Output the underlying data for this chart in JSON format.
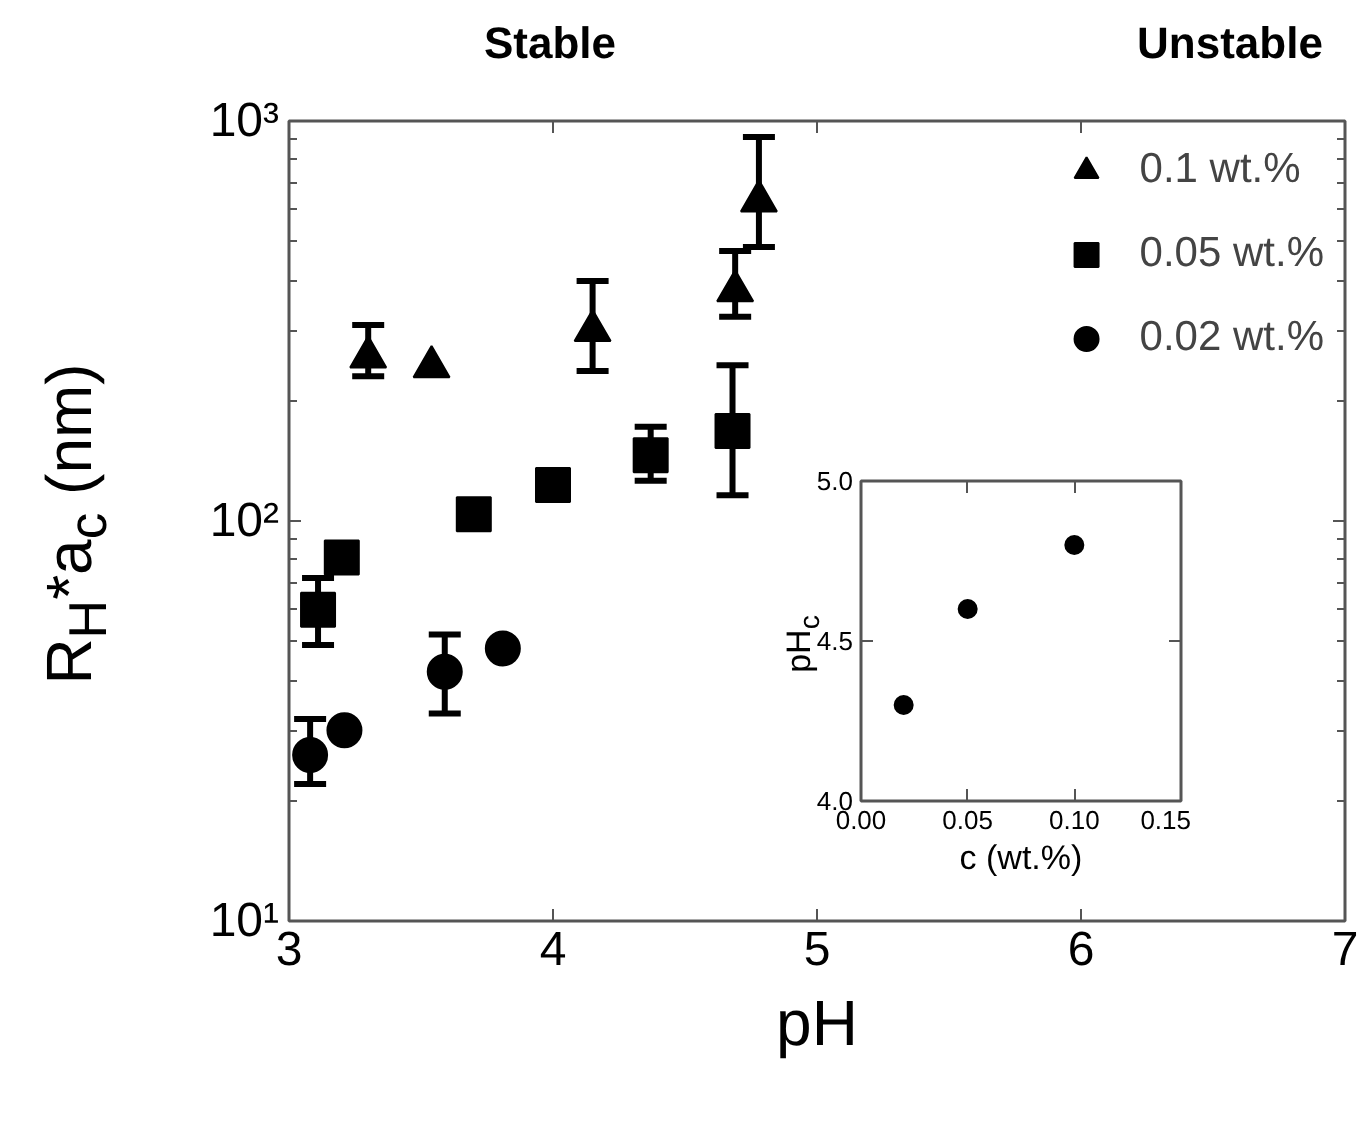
{
  "chart_data": [
    {
      "type": "scatter",
      "xlabel": "pH",
      "ylabel": "R$_{H}$*a$_{c}$ (nm)",
      "annotations": [
        "Stable",
        "Unstable"
      ],
      "log": "y",
      "xlim": [
        3,
        7
      ],
      "xticks": [
        3,
        4,
        5,
        6,
        7
      ],
      "ylim": [
        10,
        1000
      ],
      "yticks": [
        {
          "value": 10,
          "label": "10¹"
        },
        {
          "value": 100,
          "label": "10²"
        },
        {
          "value": 1000,
          "label": "10³"
        }
      ],
      "grid": false,
      "legend": "top right",
      "series": [
        {
          "name": "0.1 wt.%",
          "color": "#000000",
          "marker": "triangle",
          "x": [
            3.3,
            3.54,
            4.15,
            4.69,
            4.78
          ],
          "values": [
            257,
            243,
            299,
            376,
            631
          ],
          "errors": [
            [
              230,
              309
            ],
            null,
            [
              237,
              398
            ],
            [
              324,
              473
            ],
            [
              484,
              912
            ]
          ]
        },
        {
          "name": "0.05 wt.%",
          "color": "#000000",
          "marker": "square",
          "x": [
            3.11,
            3.2,
            3.7,
            4.0,
            4.37,
            4.68
          ],
          "values": [
            60,
            81,
            104,
            123,
            146,
            168
          ],
          "errors": [
            [
              49,
              72
            ],
            null,
            null,
            null,
            [
              126,
              172
            ],
            [
              116,
              245
            ]
          ]
        },
        {
          "name": "0.02 wt.%",
          "color": "#000000",
          "marker": "circle",
          "x": [
            3.08,
            3.21,
            3.59,
            3.81
          ],
          "values": [
            26,
            30,
            42,
            48
          ],
          "errors": [
            [
              22,
              32
            ],
            null,
            [
              33,
              52
            ],
            null
          ]
        }
      ]
    },
    {
      "type": "scatter",
      "xlabel": "c (wt.%)",
      "ylabel": "pH$_{c}$",
      "xlim": [
        0,
        0.15
      ],
      "xticks": [
        {
          "value": 0,
          "label": "0.00"
        },
        {
          "value": 0.05,
          "label": "0.05"
        },
        {
          "value": 0.1,
          "label": "0.10"
        },
        {
          "value": 0.15,
          "label": "0.15"
        }
      ],
      "ylim": [
        4.0,
        5.0
      ],
      "yticks": [
        {
          "value": 4.0,
          "label": "4.0"
        },
        {
          "value": 4.5,
          "label": "4.5"
        },
        {
          "value": 5.0,
          "label": "5.0"
        }
      ],
      "grid": false,
      "marker": "circle",
      "series": [
        {
          "color": "#000000",
          "x": [
            0.02,
            0.05,
            0.1
          ],
          "values": [
            4.3,
            4.6,
            4.8
          ]
        }
      ]
    }
  ]
}
